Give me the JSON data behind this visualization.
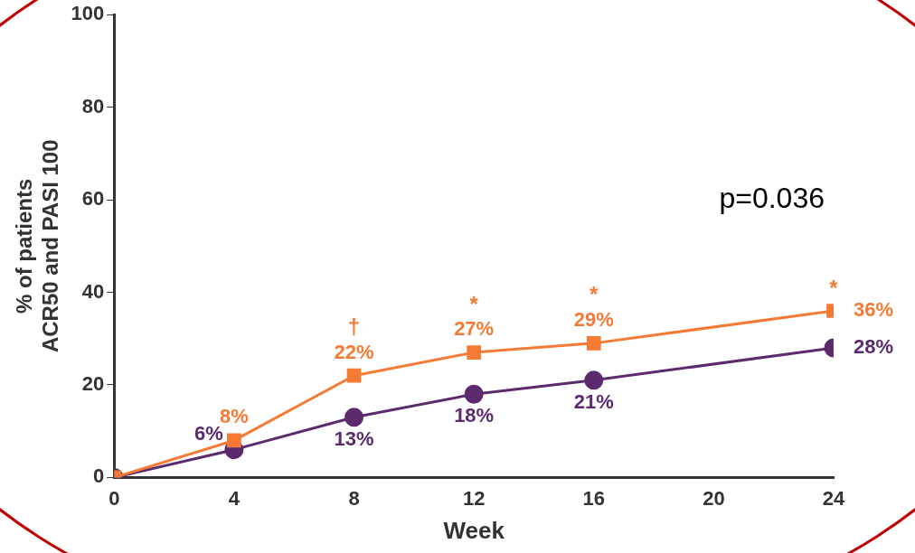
{
  "chart_data": {
    "type": "line",
    "xlabel": "Week",
    "ylabel": "% of patients\nACR50 and PASI 100",
    "x": [
      0,
      4,
      8,
      12,
      16,
      24
    ],
    "series": [
      {
        "color": "#f47a36",
        "values": [
          0,
          8,
          22,
          27,
          29,
          36
        ],
        "value_labels": [
          null,
          "8%",
          "22%",
          "27%",
          "29%",
          "36%"
        ],
        "marker": "square"
      },
      {
        "color": "#5c2b6e",
        "values": [
          0,
          6,
          13,
          18,
          21,
          28
        ],
        "value_labels": [
          null,
          "6%",
          "13%",
          "18%",
          "21%",
          "28%"
        ],
        "marker": "circle"
      }
    ],
    "xlim": [
      0,
      24
    ],
    "xticks": [
      0,
      4,
      8,
      12,
      16,
      20,
      24
    ],
    "ylim": [
      0,
      100
    ],
    "yticks": [
      0,
      20,
      40,
      60,
      80,
      100
    ],
    "grid": false,
    "legend": false,
    "annotations": [
      "p=0.036",
      {
        "text": "†",
        "x": 8,
        "y": 22
      },
      {
        "text": "*",
        "x": 12,
        "y": 27
      },
      {
        "text": "*",
        "x": 16,
        "y": 29
      },
      {
        "text": "*",
        "x": 24,
        "y": 36
      }
    ]
  }
}
